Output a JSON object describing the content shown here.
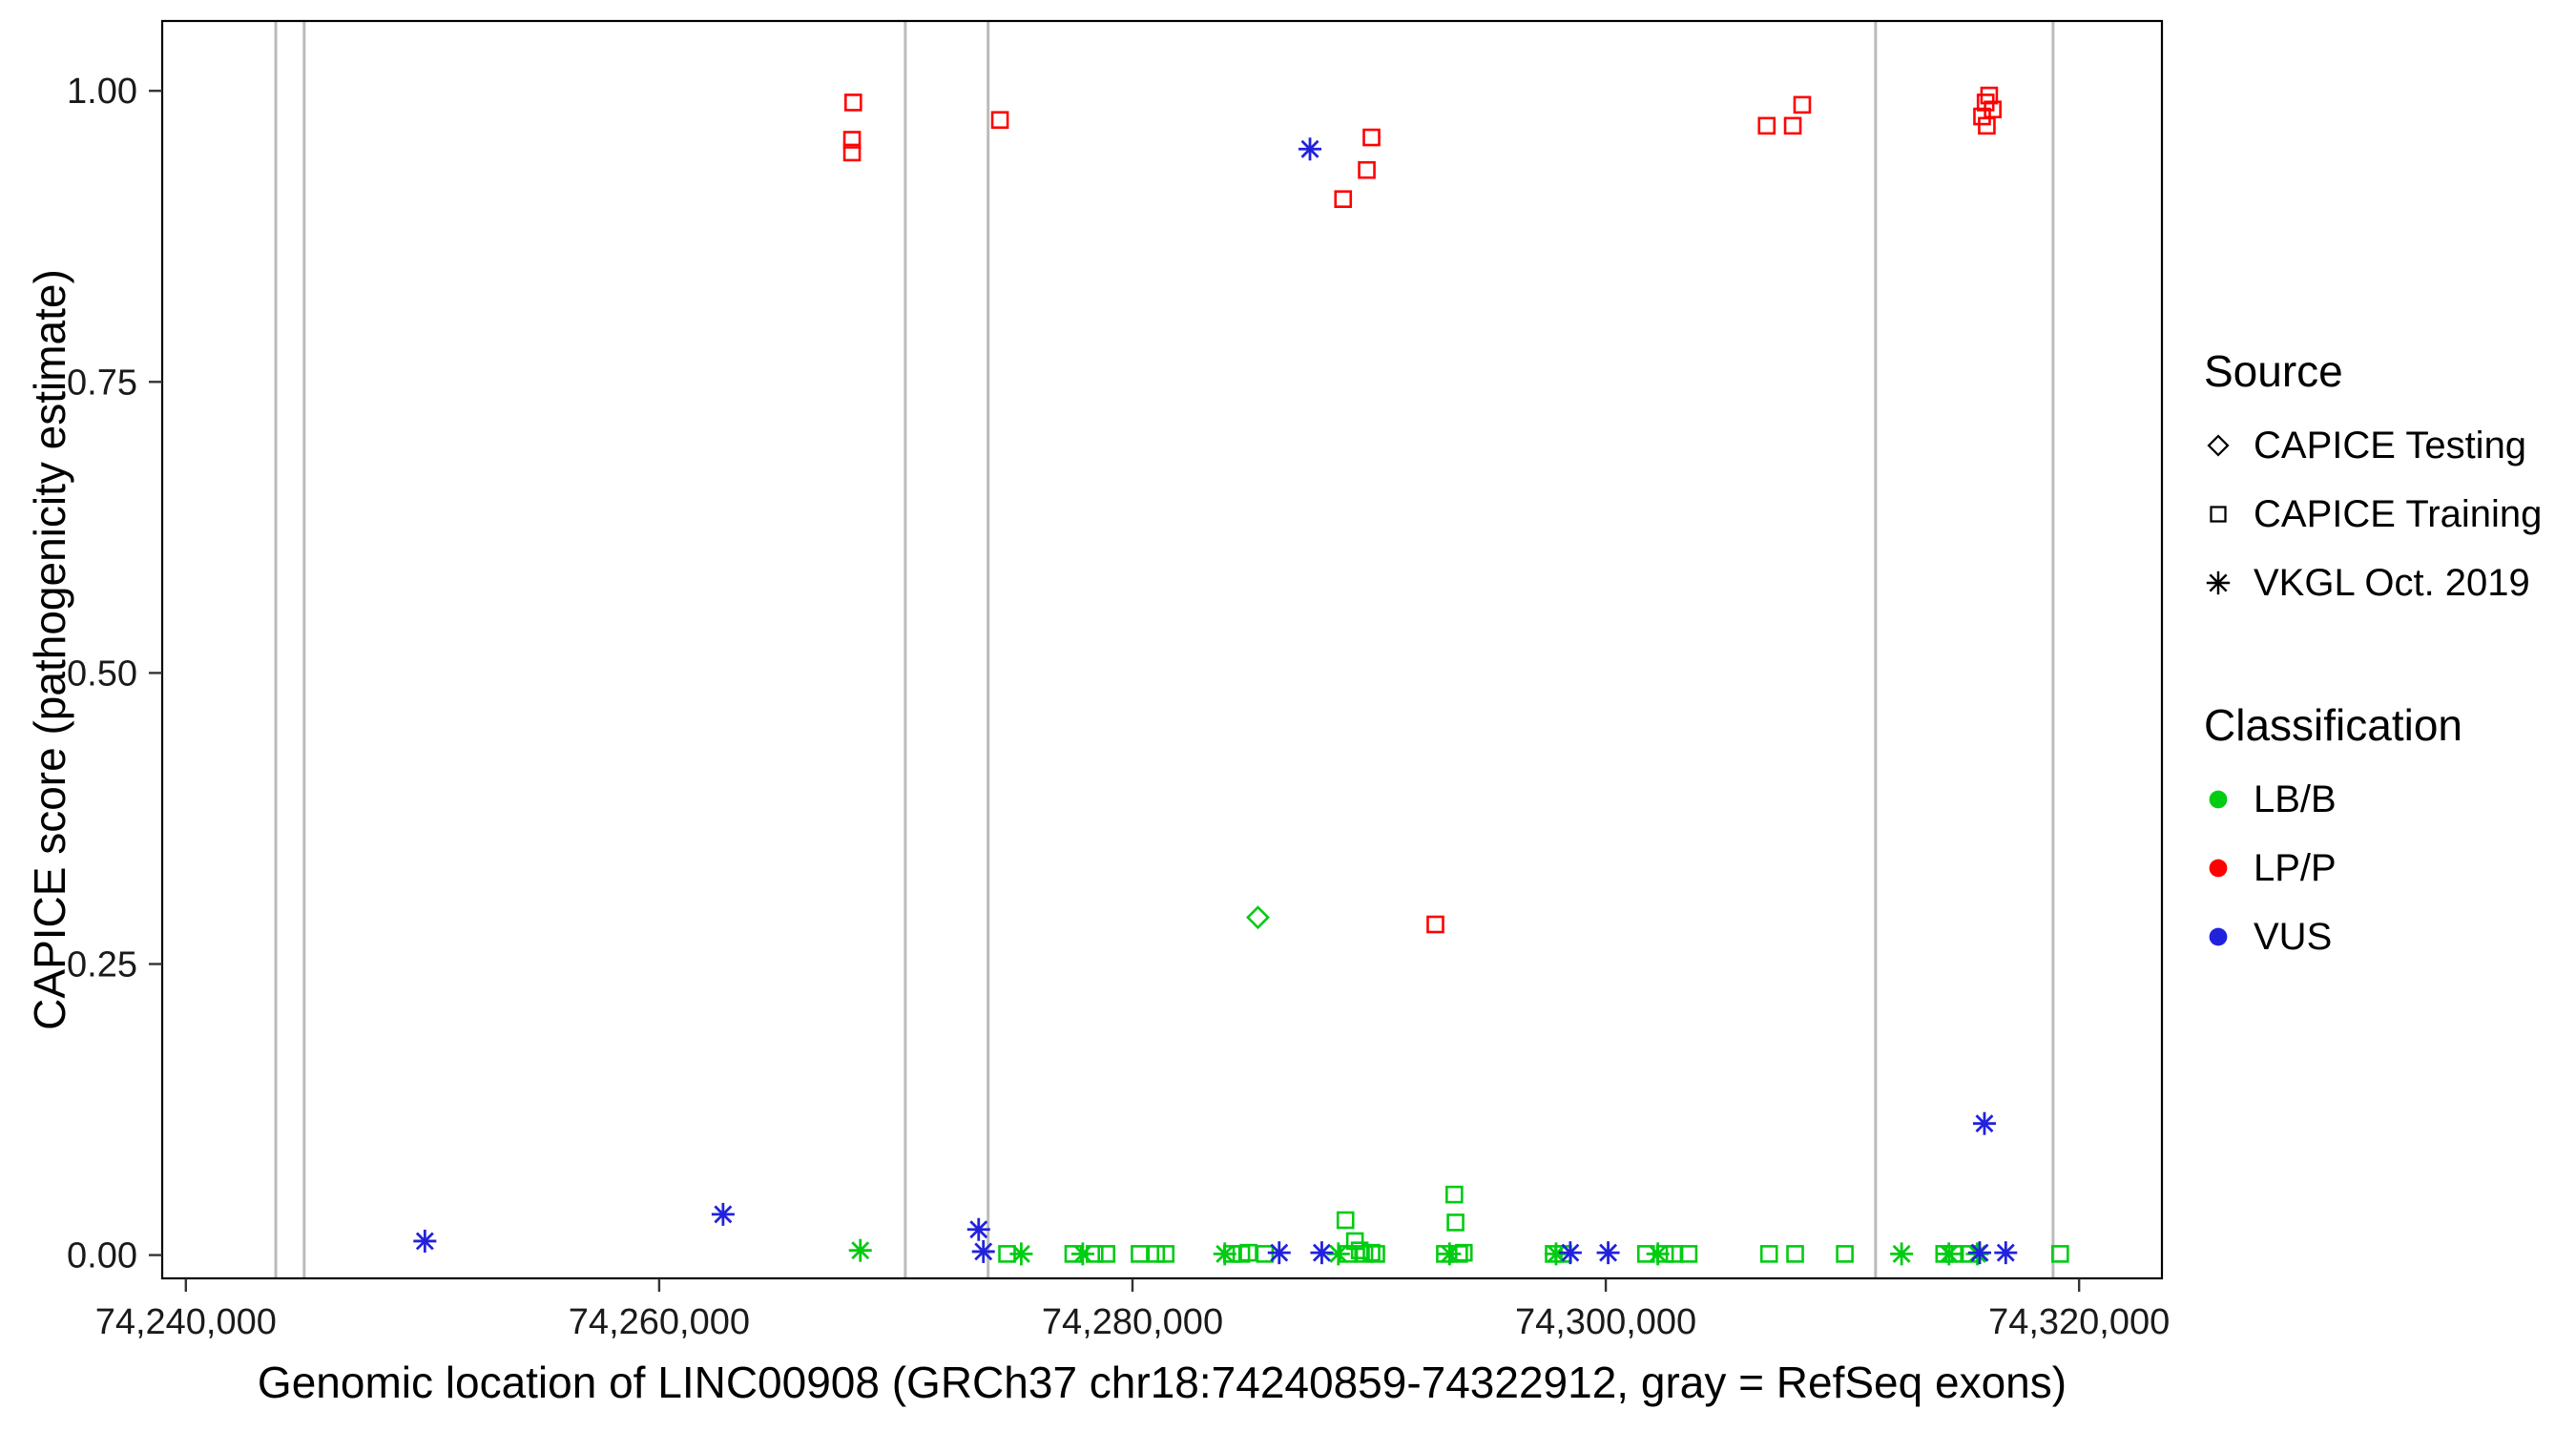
{
  "chart_data": {
    "type": "scatter",
    "title": "",
    "xlabel": "Genomic location of LINC00908 (GRCh37 chr18:74240859-74322912, gray = RefSeq exons)",
    "ylabel": "CAPICE score (pathogenicity estimate)",
    "xlim": [
      74239000,
      74323500
    ],
    "ylim": [
      -0.02,
      1.06
    ],
    "x_ticks": [
      {
        "value": 74240000,
        "label": "74,240,000"
      },
      {
        "value": 74260000,
        "label": "74,260,000"
      },
      {
        "value": 74280000,
        "label": "74,280,000"
      },
      {
        "value": 74300000,
        "label": "74,300,000"
      },
      {
        "value": 74320000,
        "label": "74,320,000"
      }
    ],
    "y_ticks": [
      {
        "value": 0.0,
        "label": "0.00"
      },
      {
        "value": 0.25,
        "label": "0.25"
      },
      {
        "value": 0.5,
        "label": "0.50"
      },
      {
        "value": 0.75,
        "label": "0.75"
      },
      {
        "value": 1.0,
        "label": "1.00"
      }
    ],
    "exon_color": "#BBBBBB",
    "exon_lines": [
      74243800,
      74245000,
      74270400,
      74273900,
      74311400,
      74318900
    ],
    "colors": {
      "LB/B": "#00CC11",
      "LP/P": "#FF0000",
      "VUS": "#2222DD"
    },
    "legend": {
      "source": {
        "title": "Source",
        "items": [
          {
            "label": "CAPICE Testing",
            "shape": "diamond"
          },
          {
            "label": "CAPICE Training",
            "shape": "square"
          },
          {
            "label": "VKGL Oct. 2019",
            "shape": "asterisk"
          }
        ]
      },
      "classification": {
        "title": "Classification",
        "items": [
          {
            "label": "LB/B",
            "color_key": "LB/B"
          },
          {
            "label": "LP/P",
            "color_key": "LP/P"
          },
          {
            "label": "VUS",
            "color_key": "VUS"
          }
        ]
      }
    },
    "series": [
      {
        "source": "CAPICE Training",
        "classification": "LP/P",
        "shape": "square",
        "points": [
          [
            74268200,
            0.99
          ],
          [
            74268150,
            0.958
          ],
          [
            74268150,
            0.947
          ],
          [
            74274400,
            0.975
          ],
          [
            74288900,
            0.907
          ],
          [
            74289900,
            0.932
          ],
          [
            74290100,
            0.96
          ],
          [
            74292800,
            0.284
          ],
          [
            74306800,
            0.97
          ],
          [
            74307900,
            0.97
          ],
          [
            74308300,
            0.988
          ],
          [
            74315900,
            0.978
          ],
          [
            74316050,
            0.99
          ],
          [
            74316200,
            0.996
          ],
          [
            74316350,
            0.984
          ],
          [
            74316100,
            0.97
          ]
        ]
      },
      {
        "source": "CAPICE Training",
        "classification": "LB/B",
        "shape": "square",
        "points": [
          [
            74274700,
            0.001
          ],
          [
            74277500,
            0.001
          ],
          [
            74278400,
            0.001
          ],
          [
            74278900,
            0.001
          ],
          [
            74280300,
            0.001
          ],
          [
            74281000,
            0.001
          ],
          [
            74281400,
            0.001
          ],
          [
            74284200,
            0.001
          ],
          [
            74284600,
            0.001
          ],
          [
            74284900,
            0.002
          ],
          [
            74285600,
            0.001
          ],
          [
            74289000,
            0.03
          ],
          [
            74289100,
            0.001
          ],
          [
            74289400,
            0.012
          ],
          [
            74289600,
            0.004
          ],
          [
            74289800,
            0.001
          ],
          [
            74290100,
            0.002
          ],
          [
            74290300,
            0.001
          ],
          [
            74293200,
            0.001
          ],
          [
            74293600,
            0.052
          ],
          [
            74293650,
            0.028
          ],
          [
            74293800,
            0.001
          ],
          [
            74294000,
            0.002
          ],
          [
            74297800,
            0.001
          ],
          [
            74298200,
            0.001
          ],
          [
            74301700,
            0.001
          ],
          [
            74302500,
            0.001
          ],
          [
            74302900,
            0.001
          ],
          [
            74303500,
            0.001
          ],
          [
            74306900,
            0.001
          ],
          [
            74308000,
            0.001
          ],
          [
            74310100,
            0.001
          ],
          [
            74314300,
            0.001
          ],
          [
            74314700,
            0.001
          ],
          [
            74315400,
            0.001
          ],
          [
            74319200,
            0.001
          ]
        ]
      },
      {
        "source": "CAPICE Testing",
        "classification": "LB/B",
        "shape": "diamond",
        "points": [
          [
            74285300,
            0.29
          ]
        ]
      },
      {
        "source": "VKGL Oct. 2019",
        "classification": "LB/B",
        "shape": "asterisk",
        "points": [
          [
            74268500,
            0.004
          ],
          [
            74275300,
            0.001
          ],
          [
            74277900,
            0.001
          ],
          [
            74283900,
            0.001
          ],
          [
            74288700,
            0.001
          ],
          [
            74293400,
            0.001
          ],
          [
            74297900,
            0.001
          ],
          [
            74302200,
            0.001
          ],
          [
            74312500,
            0.001
          ],
          [
            74314500,
            0.001
          ],
          [
            74315700,
            0.001
          ]
        ]
      },
      {
        "source": "VKGL Oct. 2019",
        "classification": "VUS",
        "shape": "asterisk",
        "points": [
          [
            74250100,
            0.012
          ],
          [
            74262700,
            0.035
          ],
          [
            74273500,
            0.022
          ],
          [
            74273700,
            0.003
          ],
          [
            74286200,
            0.002
          ],
          [
            74288000,
            0.002
          ],
          [
            74287500,
            0.95
          ],
          [
            74298500,
            0.002
          ],
          [
            74300100,
            0.002
          ],
          [
            74316000,
            0.113
          ],
          [
            74315800,
            0.002
          ],
          [
            74316900,
            0.002
          ]
        ]
      }
    ]
  }
}
